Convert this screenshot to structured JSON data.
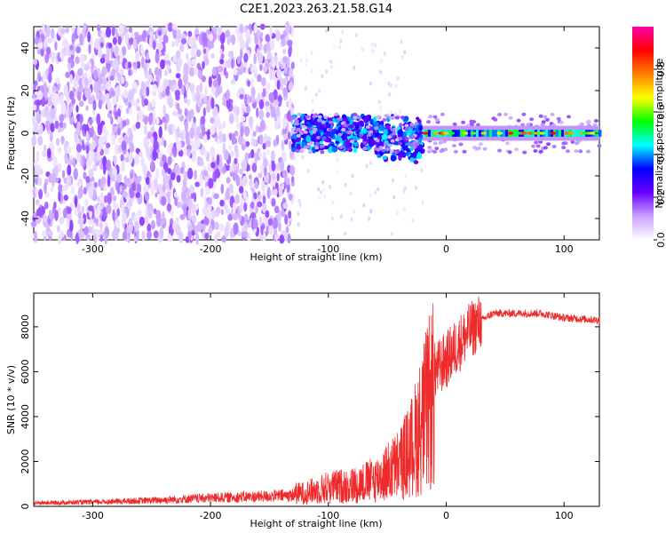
{
  "title": "C2E1.2023.263.21.58.G14",
  "chart_data": [
    {
      "type": "heatmap",
      "xlabel": "Height of straight line (km)",
      "ylabel": "Frequency (Hz)",
      "xlim": [
        -350,
        130
      ],
      "ylim": [
        -50,
        50
      ],
      "x_ticks": [
        -300,
        -200,
        -100,
        0,
        100
      ],
      "y_ticks": [
        -40,
        -20,
        0,
        20,
        40
      ],
      "colorbar": {
        "label": "Normalized spectral amplitude",
        "range": [
          0,
          1
        ],
        "ticks": [
          0.0,
          0.2,
          0.4,
          0.6,
          0.8
        ],
        "colormap": [
          "#ffffff",
          "#c8a2ff",
          "#6a00ff",
          "#0000ff",
          "#00ffff",
          "#00ff00",
          "#ffff00",
          "#ff7f00",
          "#ff0000",
          "#ff00aa"
        ]
      },
      "regions": [
        {
          "x_range": [
            -350,
            -130
          ],
          "frequency_range": [
            -50,
            50
          ],
          "amplitude_range": [
            0.0,
            0.15
          ]
        },
        {
          "x_range": [
            -130,
            -20
          ],
          "frequency_center": 0,
          "frequency_width": 10,
          "amplitude_range": [
            0.2,
            0.45
          ]
        },
        {
          "x_range": [
            -20,
            130
          ],
          "frequency_center": 0,
          "frequency_width": 4,
          "amplitude_range": [
            0.5,
            0.95
          ]
        }
      ]
    },
    {
      "type": "line",
      "xlabel": "Height of straight line (km)",
      "ylabel": "SNR (10 * v/v)",
      "xlim": [
        -350,
        130
      ],
      "ylim": [
        0,
        9500
      ],
      "x_ticks": [
        -300,
        -200,
        -100,
        0,
        100
      ],
      "y_ticks": [
        0,
        2000,
        4000,
        6000,
        8000
      ],
      "color": "#ee2a2a",
      "envelope": {
        "x": [
          -350,
          -300,
          -250,
          -200,
          -150,
          -120,
          -100,
          -80,
          -60,
          -40,
          -30,
          -20,
          -10,
          0,
          10,
          20,
          30,
          40,
          60,
          80,
          100,
          130
        ],
        "y": [
          200,
          250,
          350,
          500,
          600,
          700,
          1000,
          1100,
          1400,
          2200,
          3000,
          4500,
          6000,
          6500,
          7200,
          7800,
          8300,
          8600,
          8600,
          8600,
          8400,
          8300
        ]
      }
    }
  ]
}
